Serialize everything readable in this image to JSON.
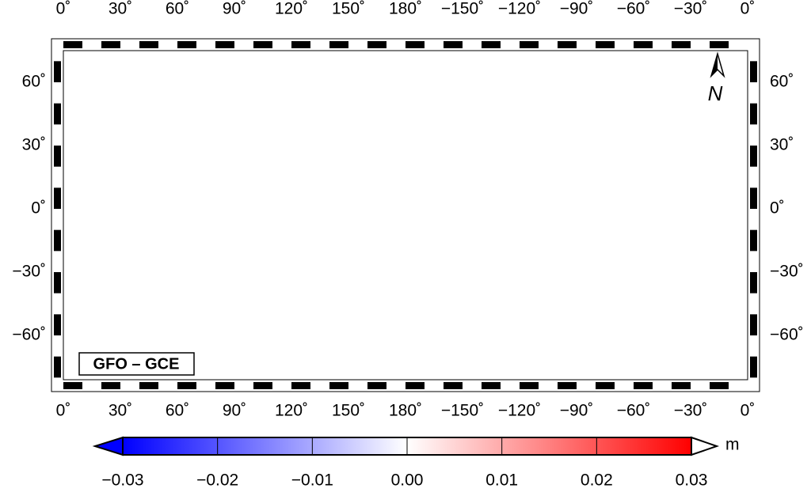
{
  "map": {
    "lon_labels_top": [
      "0˚",
      "30˚",
      "60˚",
      "90˚",
      "120˚",
      "150˚",
      "180˚",
      "−150˚",
      "−120˚",
      "−90˚",
      "−60˚",
      "−30˚",
      "0˚"
    ],
    "lon_labels_bottom": [
      "0˚",
      "30˚",
      "60˚",
      "90˚",
      "120˚",
      "150˚",
      "180˚",
      "−150˚",
      "−120˚",
      "−90˚",
      "−60˚",
      "−30˚",
      "0˚"
    ],
    "lat_labels_left": [
      "60˚",
      "30˚",
      "0˚",
      "−30˚",
      "−60˚"
    ],
    "lat_labels_right": [
      "60˚",
      "30˚",
      "0˚",
      "−30˚",
      "−60˚"
    ],
    "label": "GFO – GCE",
    "north": "N",
    "colorbar": {
      "ticks": [
        "−0.03",
        "−0.02",
        "−0.01",
        "0.00",
        "0.01",
        "0.02",
        "0.03"
      ],
      "unit": "m"
    }
  }
}
